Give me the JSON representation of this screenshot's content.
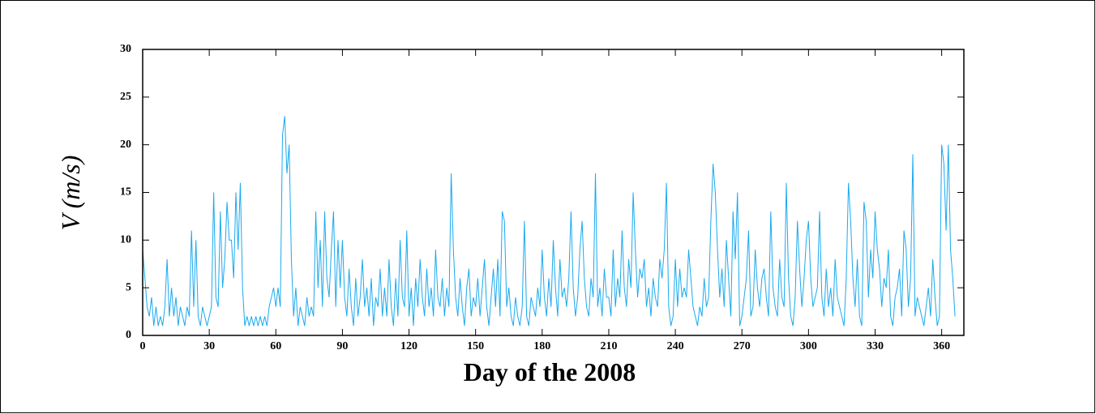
{
  "chart_data": {
    "type": "line",
    "x_label": "Day of the 2008",
    "y_label": "V (m/s)",
    "xlim": [
      0,
      370
    ],
    "ylim": [
      0,
      30
    ],
    "xticks": [
      0,
      30,
      60,
      90,
      120,
      150,
      180,
      210,
      240,
      270,
      300,
      330,
      360
    ],
    "yticks": [
      0,
      5,
      10,
      15,
      20,
      25,
      30
    ],
    "x": [
      0,
      1,
      2,
      3,
      4,
      5,
      6,
      7,
      8,
      9,
      10,
      11,
      12,
      13,
      14,
      15,
      16,
      17,
      18,
      19,
      20,
      21,
      22,
      23,
      24,
      25,
      26,
      27,
      28,
      29,
      30,
      31,
      32,
      33,
      34,
      35,
      36,
      37,
      38,
      39,
      40,
      41,
      42,
      43,
      44,
      45,
      46,
      47,
      48,
      49,
      50,
      51,
      52,
      53,
      54,
      55,
      56,
      57,
      58,
      59,
      60,
      61,
      62,
      63,
      64,
      65,
      66,
      67,
      68,
      69,
      70,
      71,
      72,
      73,
      74,
      75,
      76,
      77,
      78,
      79,
      80,
      81,
      82,
      83,
      84,
      85,
      86,
      87,
      88,
      89,
      90,
      91,
      92,
      93,
      94,
      95,
      96,
      97,
      98,
      99,
      100,
      101,
      102,
      103,
      104,
      105,
      106,
      107,
      108,
      109,
      110,
      111,
      112,
      113,
      114,
      115,
      116,
      117,
      118,
      119,
      120,
      121,
      122,
      123,
      124,
      125,
      126,
      127,
      128,
      129,
      130,
      131,
      132,
      133,
      134,
      135,
      136,
      137,
      138,
      139,
      140,
      141,
      142,
      143,
      144,
      145,
      146,
      147,
      148,
      149,
      150,
      151,
      152,
      153,
      154,
      155,
      156,
      157,
      158,
      159,
      160,
      161,
      162,
      163,
      164,
      165,
      166,
      167,
      168,
      169,
      170,
      171,
      172,
      173,
      174,
      175,
      176,
      177,
      178,
      179,
      180,
      181,
      182,
      183,
      184,
      185,
      186,
      187,
      188,
      189,
      190,
      191,
      192,
      193,
      194,
      195,
      196,
      197,
      198,
      199,
      200,
      201,
      202,
      203,
      204,
      205,
      206,
      207,
      208,
      209,
      210,
      211,
      212,
      213,
      214,
      215,
      216,
      217,
      218,
      219,
      220,
      221,
      222,
      223,
      224,
      225,
      226,
      227,
      228,
      229,
      230,
      231,
      232,
      233,
      234,
      235,
      236,
      237,
      238,
      239,
      240,
      241,
      242,
      243,
      244,
      245,
      246,
      247,
      248,
      249,
      250,
      251,
      252,
      253,
      254,
      255,
      256,
      257,
      258,
      259,
      260,
      261,
      262,
      263,
      264,
      265,
      266,
      267,
      268,
      269,
      270,
      271,
      272,
      273,
      274,
      275,
      276,
      277,
      278,
      279,
      280,
      281,
      282,
      283,
      284,
      285,
      286,
      287,
      288,
      289,
      290,
      291,
      292,
      293,
      294,
      295,
      296,
      297,
      298,
      299,
      300,
      301,
      302,
      303,
      304,
      305,
      306,
      307,
      308,
      309,
      310,
      311,
      312,
      313,
      314,
      315,
      316,
      317,
      318,
      319,
      320,
      321,
      322,
      323,
      324,
      325,
      326,
      327,
      328,
      329,
      330,
      331,
      332,
      333,
      334,
      335,
      336,
      337,
      338,
      339,
      340,
      341,
      342,
      343,
      344,
      345,
      346,
      347,
      348,
      349,
      350,
      351,
      352,
      353,
      354,
      355,
      356,
      357,
      358,
      359,
      360,
      361,
      362,
      363,
      364,
      365,
      366
    ],
    "series": [
      {
        "color": "#1aa9ee",
        "values": [
          9,
          6,
          3,
          2,
          4,
          1,
          3,
          1,
          2,
          1,
          3,
          8,
          2,
          5,
          2,
          4,
          1,
          3,
          2,
          1,
          3,
          2,
          11,
          3,
          10,
          2,
          1,
          3,
          2,
          1,
          2,
          3,
          15,
          4,
          3,
          13,
          5,
          8,
          14,
          10,
          10,
          6,
          15,
          9,
          16,
          5,
          1,
          2,
          1,
          2,
          1,
          2,
          1,
          2,
          1,
          2,
          1,
          3,
          4,
          5,
          3,
          5,
          3,
          21,
          23,
          17,
          20,
          8,
          2,
          5,
          1,
          3,
          2,
          1,
          4,
          2,
          3,
          2,
          13,
          5,
          10,
          3,
          13,
          6,
          4,
          9,
          13,
          3,
          10,
          5,
          10,
          4,
          2,
          7,
          3,
          1,
          6,
          2,
          4,
          8,
          3,
          5,
          2,
          6,
          1,
          4,
          3,
          7,
          2,
          5,
          2,
          8,
          3,
          1,
          6,
          2,
          10,
          4,
          3,
          11,
          2,
          5,
          1,
          6,
          3,
          8,
          4,
          2,
          7,
          3,
          5,
          2,
          9,
          4,
          3,
          6,
          2,
          5,
          3,
          17,
          9,
          4,
          2,
          6,
          3,
          1,
          5,
          7,
          2,
          4,
          3,
          6,
          2,
          5,
          8,
          3,
          1,
          4,
          7,
          3,
          8,
          2,
          13,
          12,
          3,
          5,
          2,
          1,
          4,
          2,
          1,
          3,
          12,
          2,
          1,
          4,
          3,
          2,
          5,
          3,
          9,
          4,
          2,
          6,
          3,
          10,
          5,
          2,
          8,
          4,
          5,
          3,
          6,
          13,
          5,
          2,
          4,
          9,
          12,
          6,
          3,
          2,
          6,
          4,
          17,
          3,
          5,
          2,
          7,
          4,
          4,
          2,
          9,
          3,
          6,
          4,
          11,
          5,
          3,
          8,
          5,
          15,
          9,
          4,
          7,
          6,
          8,
          3,
          5,
          2,
          6,
          4,
          3,
          8,
          6,
          9,
          16,
          3,
          1,
          2,
          8,
          3,
          7,
          4,
          5,
          4,
          9,
          6,
          3,
          2,
          1,
          3,
          2,
          6,
          3,
          4,
          12,
          18,
          15,
          9,
          4,
          7,
          3,
          10,
          6,
          2,
          13,
          8,
          15,
          1,
          2,
          4,
          6,
          11,
          2,
          3,
          9,
          5,
          3,
          6,
          7,
          4,
          2,
          13,
          5,
          3,
          2,
          8,
          4,
          3,
          16,
          6,
          2,
          1,
          4,
          12,
          7,
          3,
          6,
          10,
          12,
          6,
          3,
          4,
          5,
          13,
          4,
          2,
          7,
          3,
          5,
          2,
          8,
          4,
          3,
          2,
          1,
          6,
          16,
          12,
          6,
          3,
          8,
          2,
          1,
          14,
          12,
          4,
          9,
          6,
          13,
          9,
          7,
          3,
          6,
          5,
          9,
          2,
          1,
          4,
          5,
          7,
          2,
          11,
          9,
          3,
          6,
          19,
          2,
          4,
          3,
          2,
          1,
          3,
          5,
          2,
          8,
          4,
          1,
          2,
          20,
          18,
          11,
          20,
          9,
          6,
          2
        ]
      }
    ]
  }
}
